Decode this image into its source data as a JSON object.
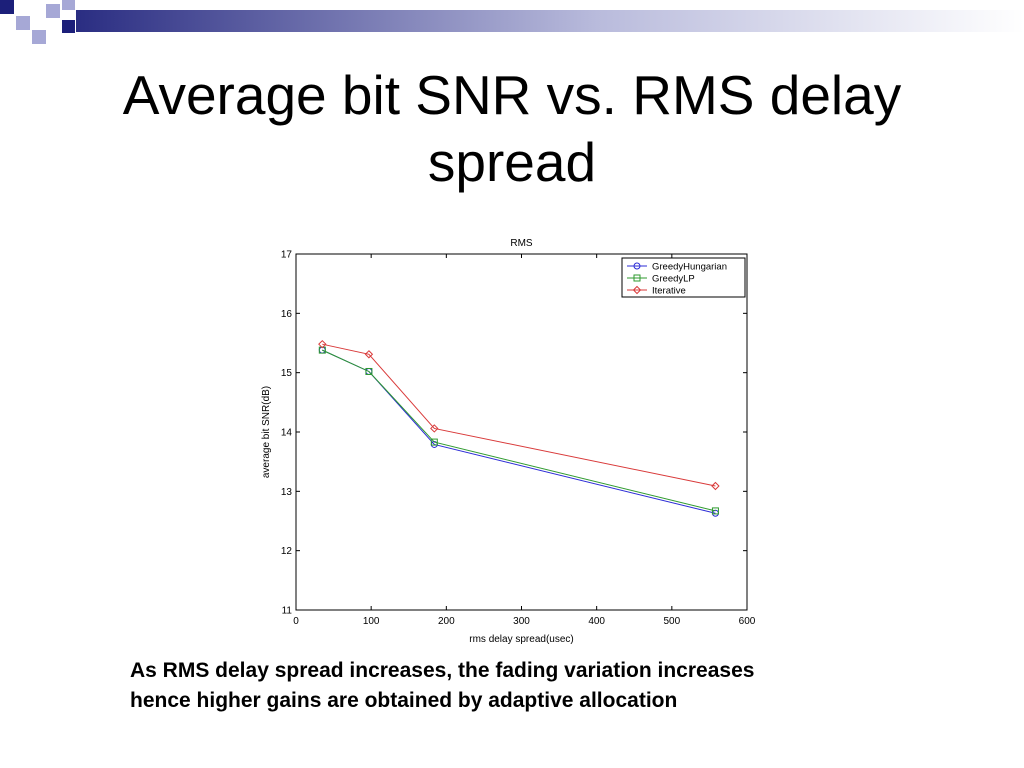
{
  "slide": {
    "title": "Average bit SNR vs. RMS delay spread",
    "caption_lines": [
      "As RMS delay spread increases, the fading variation increases",
      "hence higher gains are obtained by adaptive allocation"
    ],
    "theme_colors": {
      "navy": "#1c1f7a",
      "lavender": "#a6a8d6",
      "header_bar_start": "#2a2d82"
    }
  },
  "chart_data": {
    "type": "line",
    "title": "RMS",
    "xlabel": "rms delay spread(usec)",
    "ylabel": "average bit SNR(dB)",
    "xlim": [
      0,
      600
    ],
    "ylim": [
      11,
      17
    ],
    "xticks": [
      0,
      100,
      200,
      300,
      400,
      500,
      600
    ],
    "yticks": [
      11,
      12,
      13,
      14,
      15,
      16,
      17
    ],
    "grid": false,
    "legend": "top-right",
    "series": [
      {
        "name": "GreedyHungarian",
        "color": "#2b2bd6",
        "marker": "circle",
        "x": [
          35,
          97,
          184,
          558
        ],
        "y": [
          15.38,
          15.02,
          13.79,
          12.63
        ]
      },
      {
        "name": "GreedyLP",
        "color": "#2e9a2e",
        "marker": "square",
        "x": [
          35,
          97,
          184,
          558
        ],
        "y": [
          15.38,
          15.02,
          13.83,
          12.67
        ]
      },
      {
        "name": "Iterative",
        "color": "#d93a3a",
        "marker": "diamond",
        "x": [
          35,
          97,
          184,
          558
        ],
        "y": [
          15.48,
          15.31,
          14.06,
          13.09
        ]
      }
    ]
  }
}
